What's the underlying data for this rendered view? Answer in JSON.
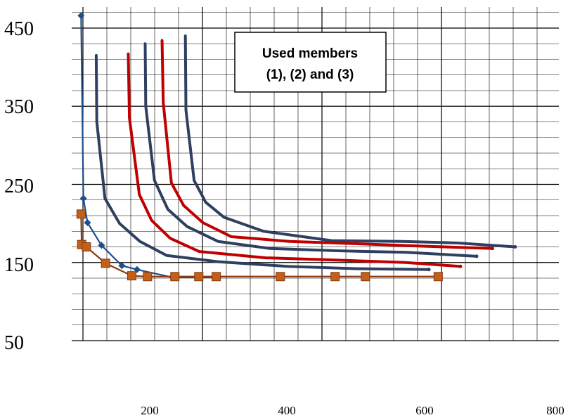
{
  "chart_data": {
    "type": "line",
    "xlim": [
      0,
      800
    ],
    "ylim": [
      50,
      450
    ],
    "x_ticks": [
      "200",
      "400",
      "600",
      "800"
    ],
    "y_ticks": [
      "450",
      "350",
      "250",
      "150",
      "50"
    ],
    "grid": true,
    "annotation": {
      "line1": "Used members",
      "line2": "(1), (2) and (3)"
    },
    "colors": {
      "navy": "#2e3f60",
      "red": "#c00000",
      "marker_blue": "#1f4e8c",
      "marker_orange": "#c0601a",
      "orange_line": "#8a3a10",
      "grid": "#000000"
    },
    "series": [
      {
        "color": "#1f4e8c",
        "marker": "diamond",
        "points": [
          [
            -2,
            466
          ],
          [
            2,
            232
          ],
          [
            9,
            201
          ],
          [
            33,
            172
          ],
          [
            68,
            146
          ],
          [
            94,
            141
          ],
          [
            155,
            131
          ],
          [
            233,
            131
          ]
        ]
      },
      {
        "color": "#c0601a",
        "marker": "square",
        "points": [
          [
            -2,
            212
          ],
          [
            -1,
            173
          ],
          [
            7,
            170
          ],
          [
            40,
            149
          ],
          [
            85,
            133
          ],
          [
            112,
            132
          ],
          [
            159,
            132
          ],
          [
            200,
            132
          ],
          [
            230,
            132
          ],
          [
            340,
            132
          ],
          [
            434,
            132
          ],
          [
            486,
            132
          ],
          [
            611,
            132
          ]
        ]
      },
      {
        "color": "#2e3f60",
        "points": [
          [
            24,
            415
          ],
          [
            25,
            330
          ],
          [
            39,
            232
          ],
          [
            64,
            200
          ],
          [
            99,
            177
          ],
          [
            145,
            159
          ],
          [
            233,
            151
          ],
          [
            353,
            145
          ],
          [
            475,
            142
          ],
          [
            595,
            141
          ]
        ]
      },
      {
        "color": "#c00000",
        "points": [
          [
            79,
            417
          ],
          [
            81,
            335
          ],
          [
            98,
            237
          ],
          [
            119,
            204
          ],
          [
            151,
            181
          ],
          [
            201,
            164
          ],
          [
            315,
            156
          ],
          [
            438,
            153
          ],
          [
            555,
            150
          ],
          [
            649,
            145
          ]
        ]
      },
      {
        "color": "#2e3f60",
        "points": [
          [
            108,
            430
          ],
          [
            109,
            350
          ],
          [
            124,
            255
          ],
          [
            147,
            218
          ],
          [
            180,
            196
          ],
          [
            233,
            177
          ],
          [
            322,
            168
          ],
          [
            438,
            165
          ],
          [
            556,
            163
          ],
          [
            677,
            158
          ]
        ]
      },
      {
        "color": "#c00000",
        "points": [
          [
            137,
            434
          ],
          [
            139,
            355
          ],
          [
            153,
            252
          ],
          [
            174,
            223
          ],
          [
            207,
            201
          ],
          [
            256,
            183
          ],
          [
            356,
            177
          ],
          [
            472,
            174
          ],
          [
            580,
            171
          ],
          [
            704,
            168
          ]
        ]
      },
      {
        "color": "#2e3f60",
        "points": [
          [
            177,
            440
          ],
          [
            178,
            345
          ],
          [
            192,
            255
          ],
          [
            212,
            227
          ],
          [
            243,
            208
          ],
          [
            311,
            190
          ],
          [
            428,
            178
          ],
          [
            549,
            177
          ],
          [
            644,
            175
          ],
          [
            743,
            170
          ]
        ]
      }
    ]
  }
}
